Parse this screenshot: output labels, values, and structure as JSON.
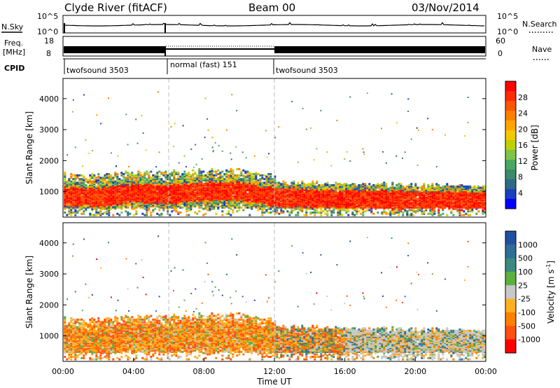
{
  "header": {
    "station": "Clyde River (fitACF)",
    "beam": "Beam 00",
    "date": "03/Nov/2014"
  },
  "strips": {
    "nsky_label": "N.Sky",
    "nsky_ticks": [
      "10^5",
      "10^0"
    ],
    "nsearch_label": "N.Search",
    "nsearch_ticks": [
      "10^5",
      "10^0"
    ],
    "freq_label": "Freq.",
    "freq_unit": "[MHz]",
    "freq_ticks": [
      "18",
      "8"
    ],
    "nave_label": "Nave",
    "nave_ticks": [
      "60",
      "0"
    ],
    "cpid_label": "CPID",
    "cpid_segments": [
      {
        "label": "twofsound 3503",
        "start_h": 0,
        "end_h": 6
      },
      {
        "label": "normal (fast) 151",
        "start_h": 6,
        "end_h": 12
      },
      {
        "label": "twofsound 3503",
        "start_h": 12,
        "end_h": 24
      }
    ]
  },
  "power_colorbar": {
    "label": "Power [dB]",
    "ticks": [
      "28",
      "24",
      "20",
      "16",
      "12",
      "8",
      "4"
    ],
    "colors": [
      "#ff0000",
      "#ff2a00",
      "#ff5500",
      "#ff7f00",
      "#ffa500",
      "#f2c800",
      "#bfd000",
      "#7dc44a",
      "#4aa860",
      "#3c8a6a",
      "#2e6a88",
      "#1a3fc0",
      "#0000ff"
    ]
  },
  "velocity_colorbar": {
    "label": "Velocity [m s",
    "label_sup": "-1",
    "label_end": "]",
    "ticks": [
      "1000",
      "500",
      "100",
      "25",
      "-25",
      "-100",
      "-500",
      "-1000"
    ],
    "colors": [
      "#2050a0",
      "#2e6e98",
      "#3a8a80",
      "#5cb040",
      "#c8c8c8",
      "#ffb020",
      "#ff8000",
      "#ff5010",
      "#ff0000"
    ]
  },
  "chart_data": [
    {
      "type": "heatmap",
      "title": "Power",
      "xlabel": "Time UT",
      "ylabel": "Slant Range [km]",
      "xlim": [
        0,
        24
      ],
      "ylim": [
        180,
        4650
      ],
      "x_ticks": [
        "00:00",
        "04:00",
        "08:00",
        "12:00",
        "16:00",
        "20:00",
        "00:00"
      ],
      "y_ticks": [
        1000,
        2000,
        3000,
        4000
      ],
      "echo_band_km": {
        "center_points_h_km": [
          [
            0,
            900
          ],
          [
            2,
            850
          ],
          [
            4,
            1000
          ],
          [
            6,
            950
          ],
          [
            8,
            1050
          ],
          [
            10,
            1050
          ],
          [
            12,
            850
          ],
          [
            16,
            800
          ],
          [
            20,
            750
          ],
          [
            24,
            750
          ]
        ],
        "typical_power_db": 28
      }
    },
    {
      "type": "heatmap",
      "title": "Velocity",
      "xlabel": "Time UT",
      "ylabel": "Slant Range [km]",
      "xlim": [
        0,
        24
      ],
      "ylim": [
        180,
        4650
      ],
      "x_ticks": [
        "00:00",
        "04:00",
        "08:00",
        "12:00",
        "16:00",
        "20:00",
        "00:00"
      ],
      "y_ticks": [
        1000,
        2000,
        3000,
        4000
      ],
      "dominant_velocity_ms": {
        "00:00-12:00": -100,
        "12:00-16:00": -100,
        "16:00-24:00": -25
      }
    }
  ]
}
